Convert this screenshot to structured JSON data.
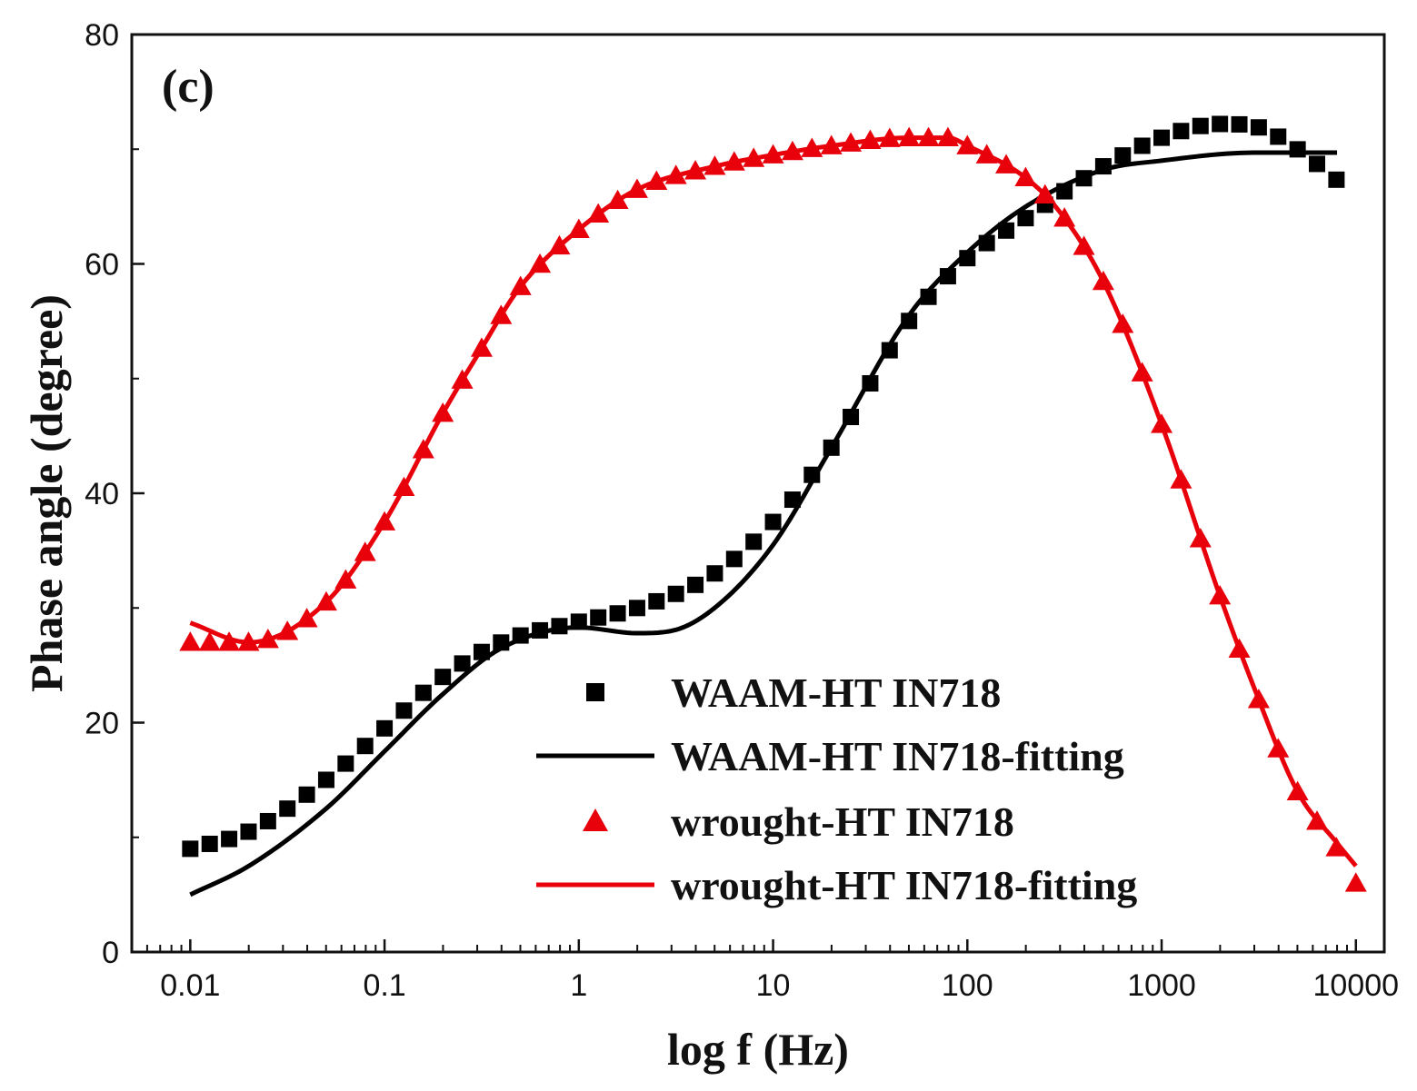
{
  "chart_data": {
    "type": "scatter",
    "panel_label": "(c)",
    "title": "",
    "xlabel": "log f (Hz)",
    "ylabel": "Phase angle (degree)",
    "xscale": "log",
    "xlim": [
      0.005,
      14000
    ],
    "ylim": [
      0,
      80
    ],
    "x_ticks": [
      0.01,
      0.1,
      1,
      10,
      100,
      1000,
      10000
    ],
    "x_tick_labels": [
      "0.01",
      "0.1",
      "1",
      "10",
      "100",
      "1000",
      "10000"
    ],
    "y_ticks": [
      0,
      20,
      40,
      60,
      80
    ],
    "y_tick_labels": [
      "0",
      "20",
      "40",
      "60",
      "80"
    ],
    "legend_position": "bottom-right",
    "series": [
      {
        "name": "WAAM-HT IN718",
        "kind": "markers",
        "marker": "square",
        "color": "#000000",
        "anchors": [
          [
            0.01,
            9
          ],
          [
            0.02,
            10.5
          ],
          [
            0.05,
            15
          ],
          [
            0.1,
            19.5
          ],
          [
            0.2,
            24
          ],
          [
            0.4,
            27
          ],
          [
            1,
            28.8
          ],
          [
            2,
            30
          ],
          [
            5,
            33
          ],
          [
            10,
            37.5
          ],
          [
            20,
            44
          ],
          [
            50,
            55
          ],
          [
            100,
            60.5
          ],
          [
            200,
            64
          ],
          [
            500,
            68.5
          ],
          [
            1000,
            71
          ],
          [
            2000,
            72.2
          ],
          [
            3000,
            72
          ],
          [
            5000,
            70
          ],
          [
            8000,
            67.3
          ]
        ]
      },
      {
        "name": "WAAM-HT IN718-fitting",
        "kind": "line",
        "color": "#000000",
        "anchors": [
          [
            0.01,
            5
          ],
          [
            0.02,
            7.5
          ],
          [
            0.05,
            12.5
          ],
          [
            0.1,
            17.5
          ],
          [
            0.2,
            22.5
          ],
          [
            0.4,
            26.5
          ],
          [
            1,
            28.3
          ],
          [
            2,
            27.8
          ],
          [
            3,
            28
          ],
          [
            5,
            30
          ],
          [
            10,
            35.5
          ],
          [
            20,
            44
          ],
          [
            50,
            55.5
          ],
          [
            100,
            61
          ],
          [
            200,
            65
          ],
          [
            500,
            68.2
          ],
          [
            1000,
            69
          ],
          [
            3000,
            69.7
          ],
          [
            8000,
            69.7
          ]
        ]
      },
      {
        "name": "wrought-HT IN718",
        "kind": "markers",
        "marker": "triangle",
        "color": "#e8000b",
        "anchors": [
          [
            0.01,
            27
          ],
          [
            0.02,
            27
          ],
          [
            0.05,
            30.5
          ],
          [
            0.1,
            37.5
          ],
          [
            0.2,
            47
          ],
          [
            0.3,
            52
          ],
          [
            0.5,
            58
          ],
          [
            1,
            63
          ],
          [
            2,
            66.5
          ],
          [
            5,
            68.5
          ],
          [
            10,
            69.5
          ],
          [
            20,
            70.3
          ],
          [
            50,
            71
          ],
          [
            80,
            71
          ],
          [
            100,
            70.3
          ],
          [
            200,
            67.5
          ],
          [
            300,
            64.5
          ],
          [
            500,
            58.5
          ],
          [
            1000,
            46
          ],
          [
            2000,
            31
          ],
          [
            3000,
            23
          ],
          [
            5000,
            14
          ],
          [
            8000,
            9
          ],
          [
            10000,
            6
          ]
        ]
      },
      {
        "name": "wrought-HT IN718-fitting",
        "kind": "line",
        "color": "#e8000b",
        "anchors": [
          [
            0.01,
            28.7
          ],
          [
            0.02,
            27
          ],
          [
            0.05,
            30.5
          ],
          [
            0.1,
            37.5
          ],
          [
            0.2,
            47
          ],
          [
            0.3,
            52
          ],
          [
            0.5,
            58
          ],
          [
            1,
            63
          ],
          [
            2,
            66.5
          ],
          [
            5,
            68.5
          ],
          [
            10,
            69.5
          ],
          [
            20,
            70.3
          ],
          [
            50,
            71
          ],
          [
            80,
            71
          ],
          [
            100,
            70.3
          ],
          [
            200,
            67.5
          ],
          [
            300,
            64.5
          ],
          [
            500,
            58.5
          ],
          [
            1000,
            46
          ],
          [
            2000,
            31
          ],
          [
            3000,
            23
          ],
          [
            5000,
            14
          ],
          [
            8000,
            9.5
          ],
          [
            10000,
            7.5
          ]
        ]
      }
    ]
  }
}
